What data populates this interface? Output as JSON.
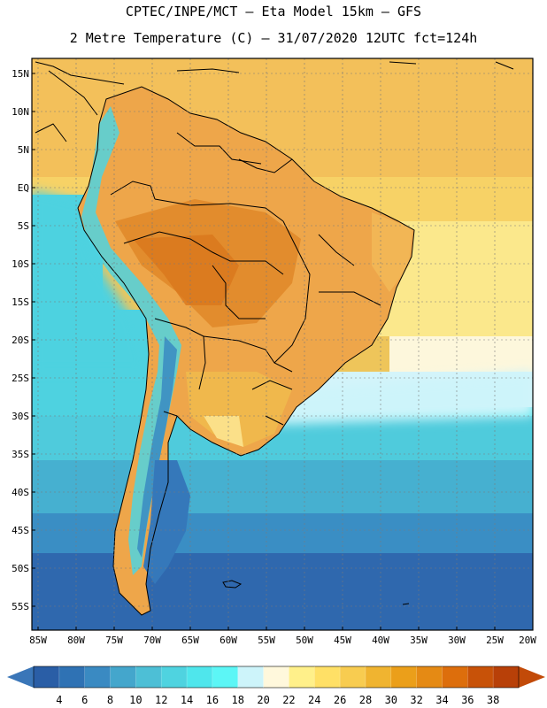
{
  "header": {
    "line1": "CPTEC/INPE/MCT –  Eta Model 15km – GFS",
    "line2": "2 Metre Temperature (C) – 31/07/2020 12UTC fct=124h"
  },
  "map": {
    "lat_labels": [
      "15N",
      "10N",
      "5N",
      "EQ",
      "5S",
      "10S",
      "15S",
      "20S",
      "25S",
      "30S",
      "35S",
      "40S",
      "45S",
      "50S",
      "55S"
    ],
    "lon_labels": [
      "85W",
      "80W",
      "75W",
      "70W",
      "65W",
      "60W",
      "55W",
      "50W",
      "45W",
      "40W",
      "35W",
      "30W",
      "25W",
      "20W"
    ]
  },
  "colorbar": {
    "labels": [
      "4",
      "6",
      "8",
      "10",
      "12",
      "14",
      "16",
      "18",
      "20",
      "22",
      "24",
      "26",
      "28",
      "30",
      "32",
      "34",
      "36",
      "38"
    ],
    "colors": [
      "#2a5ea6",
      "#2f72b4",
      "#3a8ac2",
      "#44a6cc",
      "#4dbfd6",
      "#4fd3e0",
      "#4fe6ec",
      "#5cf6f6",
      "#cdf4fa",
      "#fff8dc",
      "#fff08a",
      "#ffe066",
      "#f8cc50",
      "#f0b430",
      "#eb9f1a",
      "#e58a14",
      "#dd6e0c",
      "#c85208",
      "#b84008"
    ],
    "low_color": "#3a76b8",
    "high_color": "#c24a08"
  }
}
